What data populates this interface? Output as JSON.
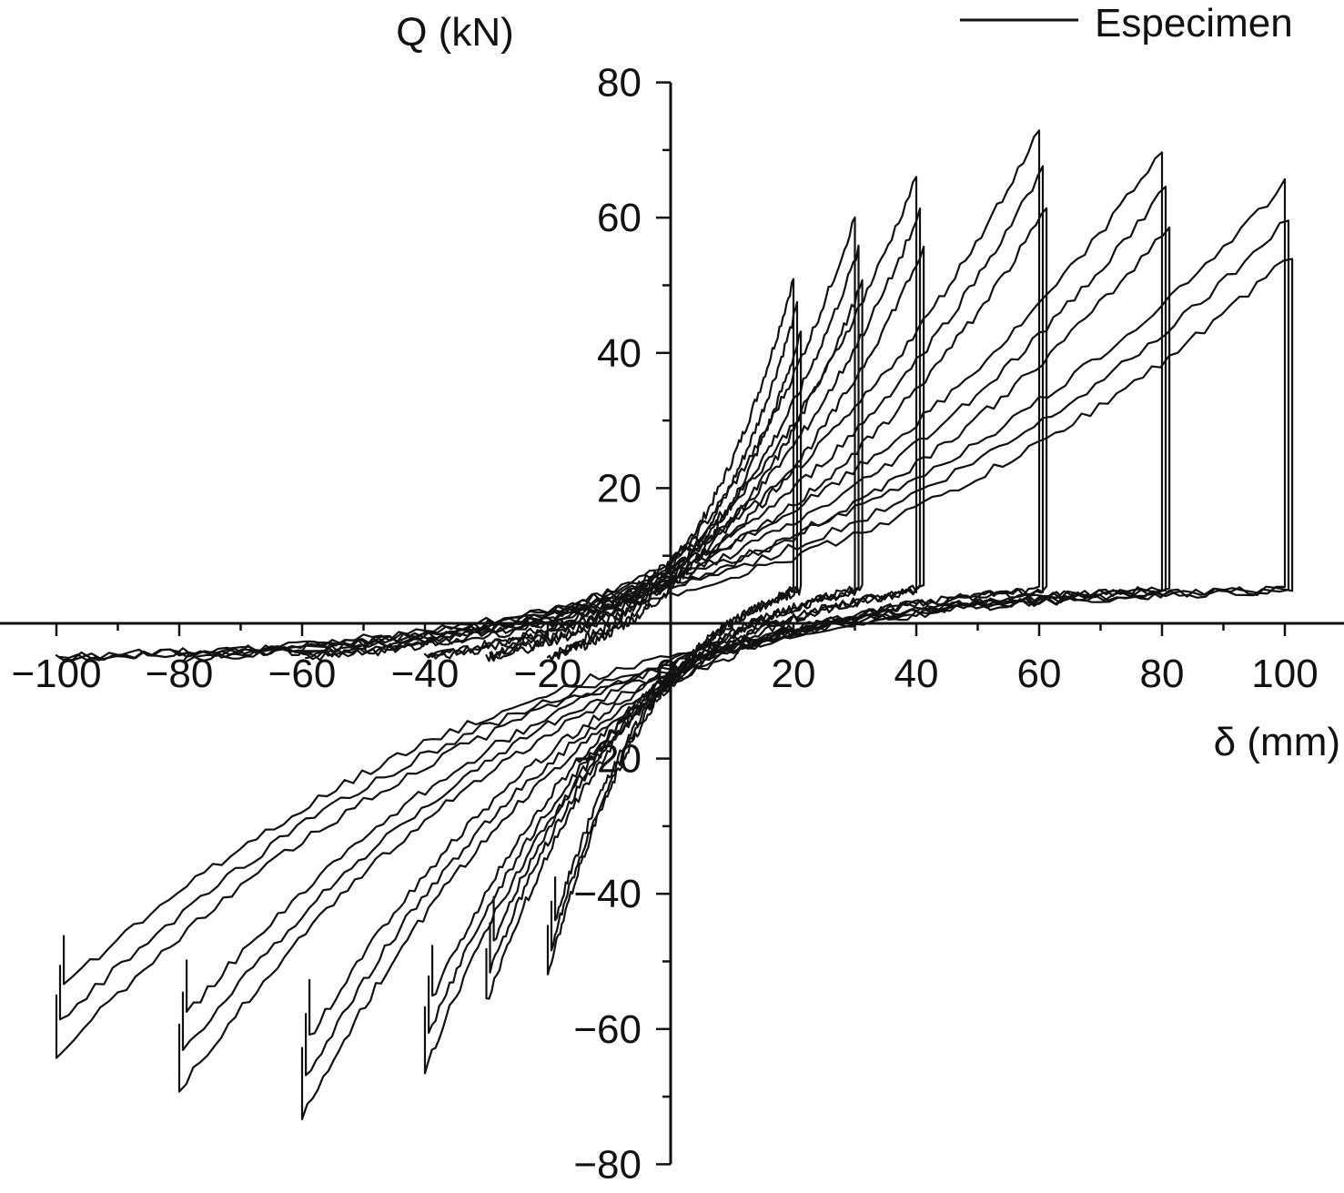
{
  "chart_data": {
    "type": "line",
    "title": "",
    "xlabel": "δ (mm)",
    "ylabel": "Q (kN)",
    "xlim": [
      -110,
      110
    ],
    "ylim": [
      -80,
      80
    ],
    "x_ticks": [
      -100,
      -80,
      -60,
      -40,
      -20,
      0,
      20,
      40,
      60,
      80,
      100
    ],
    "x_tick_labels": [
      "−100",
      "−80",
      "−60",
      "−40",
      "−20",
      "0",
      "20",
      "40",
      "60",
      "80",
      "100"
    ],
    "y_ticks": [
      -80,
      -60,
      -40,
      -20,
      20,
      40,
      60,
      80
    ],
    "y_tick_labels": [
      "−80",
      "−60",
      "−40",
      "−20",
      "20",
      "40",
      "60",
      "80"
    ],
    "grid": false,
    "legend": {
      "position": "top-right",
      "entries": [
        "Especimen"
      ]
    },
    "series_color": "#111111",
    "series": [
      {
        "name": "Especimen",
        "loops": [
          {
            "amplitude": 20,
            "peak_pos": 51,
            "peak_neg": -52,
            "pinch": 0.3
          },
          {
            "amplitude": 30,
            "peak_pos": 60,
            "peak_neg": -56,
            "pinch": 0.25
          },
          {
            "amplitude": 40,
            "peak_pos": 66,
            "peak_neg": -66,
            "pinch": 0.2
          },
          {
            "amplitude": 60,
            "peak_pos": 73,
            "peak_neg": -73,
            "pinch": 0.15
          },
          {
            "amplitude": 80,
            "peak_pos": 70,
            "peak_neg": -69,
            "pinch": 0.12
          },
          {
            "amplitude": 100,
            "peak_pos": 65,
            "peak_neg": -64,
            "pinch": 0.1
          }
        ]
      }
    ]
  }
}
